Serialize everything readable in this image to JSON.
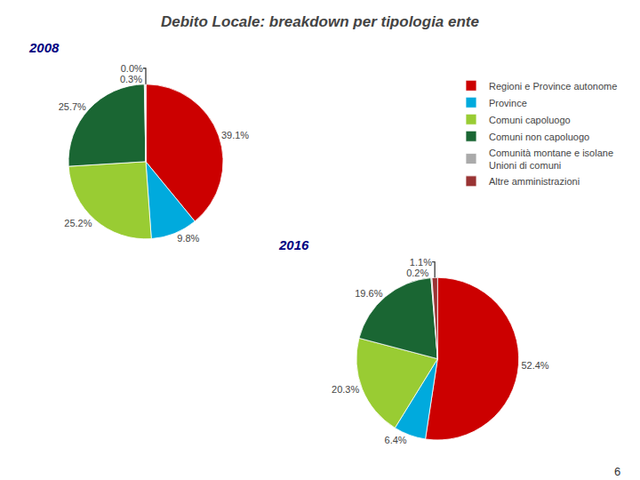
{
  "chart_data": [
    {
      "type": "pie",
      "title": "Debito Locale: breakdown per tipologia ente",
      "subtitle": "2008",
      "categories": [
        "Regioni e Province autonome",
        "Province",
        "Comuni capoluogo",
        "Comuni non capoluogo",
        "Comunità montane e isolane\nUnioni di comuni",
        "Altre amministrazioni"
      ],
      "values": [
        39.1,
        9.8,
        25.2,
        25.7,
        0.3,
        0.0001
      ],
      "value_labels": [
        "39.1%",
        "9.8%",
        "25.2%",
        "25.7%",
        "0.3%",
        "0.0%"
      ],
      "colors": [
        "#cc0000",
        "#00aadd",
        "#99cc33",
        "#1a6633",
        "#aaaaaa",
        "#993333"
      ],
      "legend": "right",
      "annotations": [
        "6"
      ]
    },
    {
      "type": "pie",
      "subtitle": "2016",
      "categories": [
        "Regioni e Province autonome",
        "Province",
        "Comuni capoluogo",
        "Comuni non capoluogo",
        "Comunità montane e isolane\nUnioni di comuni",
        "Altre amministrazioni"
      ],
      "values": [
        52.4,
        6.4,
        20.3,
        19.6,
        0.2,
        1.1
      ],
      "value_labels": [
        "52.4%",
        "6.4%",
        "20.3%",
        "19.6%",
        "0.2%",
        "1.1%"
      ],
      "colors": [
        "#cc0000",
        "#00aadd",
        "#99cc33",
        "#1a6633",
        "#aaaaaa",
        "#993333"
      ]
    }
  ]
}
